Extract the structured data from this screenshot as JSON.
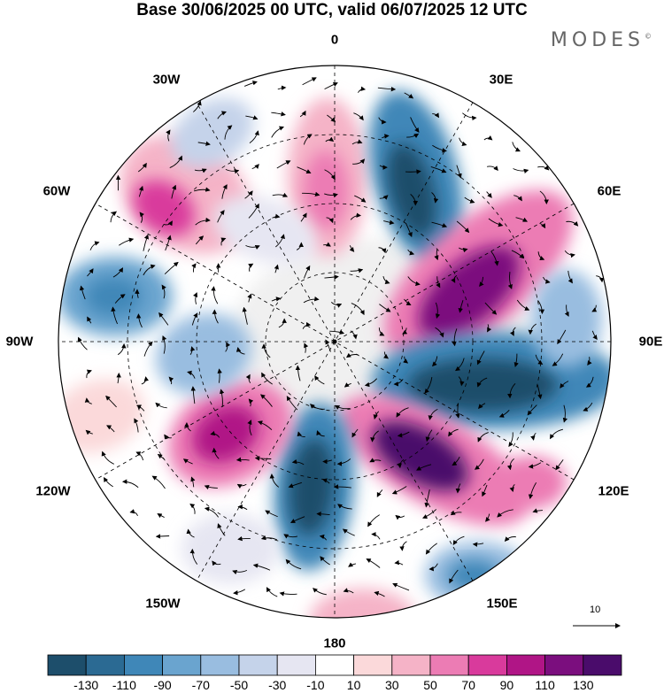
{
  "title": "Base 30/06/2025 00 UTC, valid 06/07/2025 12 UTC",
  "brand": "MODES",
  "brand_mark": "©",
  "longitude_labels": {
    "lon_0": "0",
    "lon_30e": "30E",
    "lon_60e": "60E",
    "lon_90e": "90E",
    "lon_120e": "120E",
    "lon_150e": "150E",
    "lon_180": "180",
    "lon_150w": "150W",
    "lon_120w": "120W",
    "lon_90w": "90W",
    "lon_60w": "60W",
    "lon_30w": "30W"
  },
  "vector_reference": "10",
  "colorbar": {
    "colors": [
      "#1d4e6b",
      "#2b6a93",
      "#3f87b8",
      "#6aa4cf",
      "#99bde0",
      "#c5d3ea",
      "#e6e6f2",
      "#ffffff",
      "#fbd9da",
      "#f5b3c7",
      "#ec7cb4",
      "#d93a9c",
      "#b01586",
      "#7b0e7e",
      "#4a0c6b"
    ],
    "tick_labels": [
      "-130",
      "-110",
      "-90",
      "-70",
      "-50",
      "-30",
      "-10",
      "10",
      "30",
      "50",
      "70",
      "90",
      "110",
      "130"
    ]
  }
}
